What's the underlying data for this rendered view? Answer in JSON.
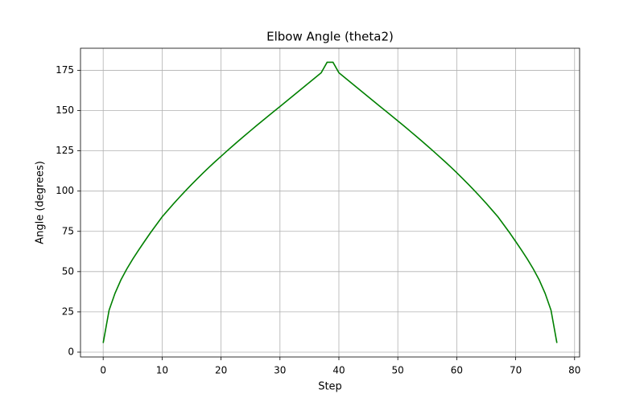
{
  "chart_data": {
    "type": "line",
    "title": "Elbow Angle (theta2)",
    "x_label": "Step",
    "y_label": "Angle (degrees)",
    "color": "#008000",
    "grid": true,
    "x": [
      0,
      1,
      2,
      3,
      4,
      5,
      6,
      7,
      8,
      9,
      10,
      11,
      12,
      13,
      14,
      15,
      16,
      17,
      18,
      19,
      20,
      21,
      22,
      23,
      24,
      25,
      26,
      27,
      28,
      29,
      30,
      31,
      32,
      33,
      34,
      35,
      36,
      37,
      38,
      39,
      40,
      41,
      42,
      43,
      44,
      45,
      46,
      47,
      48,
      49,
      50,
      51,
      52,
      53,
      54,
      55,
      56,
      57,
      58,
      59,
      60,
      61,
      62,
      63,
      64,
      65,
      66,
      67,
      68,
      69,
      70,
      71,
      72,
      73,
      74,
      75,
      76,
      77
    ],
    "values": [
      5.7,
      26,
      36.5,
      44.8,
      51.6,
      57.7,
      63.3,
      68.7,
      74,
      79,
      84,
      88.2,
      92.4,
      96.4,
      100.3,
      104.1,
      107.8,
      111.4,
      114.9,
      118.3,
      121.6,
      124.9,
      128.1,
      131.3,
      134.4,
      137.5,
      140.6,
      143.6,
      146.6,
      149.6,
      152.5,
      155.5,
      158.5,
      161.5,
      164.5,
      167.5,
      170.5,
      173.5,
      180,
      180,
      173.5,
      170.5,
      167.5,
      164.5,
      161.5,
      158.5,
      155.5,
      152.5,
      149.6,
      146.6,
      143.6,
      140.6,
      137.5,
      134.4,
      131.3,
      128.1,
      124.9,
      121.6,
      118.3,
      114.9,
      111.4,
      107.8,
      104.1,
      100.3,
      96.4,
      92.4,
      88.2,
      84,
      79,
      74,
      68.7,
      63.3,
      57.7,
      51.6,
      44.8,
      36.5,
      26,
      5.7
    ],
    "xlim": [
      -3.85,
      80.85
    ],
    "ylim": [
      -3.0,
      188.7
    ],
    "xticks": [
      0,
      10,
      20,
      30,
      40,
      50,
      60,
      70,
      80
    ],
    "yticks": [
      0,
      25,
      50,
      75,
      100,
      125,
      150,
      175
    ]
  }
}
